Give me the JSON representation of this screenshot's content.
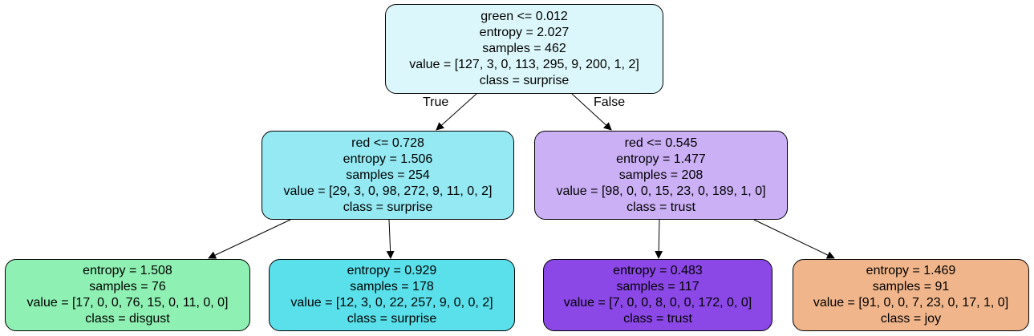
{
  "tree": {
    "root": {
      "split": "green <= 0.012",
      "entropy": "entropy = 2.027",
      "samples": "samples = 462",
      "value": "value = [127, 3, 0, 113, 295, 9, 200, 1, 2]",
      "class": "class = surprise",
      "fill": "#dcf7fb"
    },
    "edge_labels": {
      "left": "True",
      "right": "False"
    },
    "left": {
      "split": "red <= 0.728",
      "entropy": "entropy = 1.506",
      "samples": "samples = 254",
      "value": "value = [29, 3, 0, 98, 272, 9, 11, 0, 2]",
      "class": "class = surprise",
      "fill": "#94e9f2"
    },
    "right": {
      "split": "red <= 0.545",
      "entropy": "entropy = 1.477",
      "samples": "samples = 208",
      "value": "value = [98, 0, 0, 15, 23, 0, 189, 1, 0]",
      "class": "class = trust",
      "fill": "#cbb0f5"
    },
    "leaves": [
      {
        "entropy": "entropy = 1.508",
        "samples": "samples = 76",
        "value": "value = [17, 0, 0, 76, 15, 0, 11, 0, 0]",
        "class": "class = disgust",
        "fill": "#8ef0b2"
      },
      {
        "entropy": "entropy = 0.929",
        "samples": "samples = 178",
        "value": "value = [12, 3, 0, 22, 257, 9, 0, 0, 2]",
        "class": "class = surprise",
        "fill": "#5ae0ea"
      },
      {
        "entropy": "entropy = 0.483",
        "samples": "samples = 117",
        "value": "value = [7, 0, 0, 8, 0, 0, 172, 0, 0]",
        "class": "class = trust",
        "fill": "#8b48e7"
      },
      {
        "entropy": "entropy = 1.469",
        "samples": "samples = 91",
        "value": "value = [91, 0, 0, 7, 23, 0, 17, 1, 0]",
        "class": "class = joy",
        "fill": "#f0b58b"
      }
    ]
  }
}
